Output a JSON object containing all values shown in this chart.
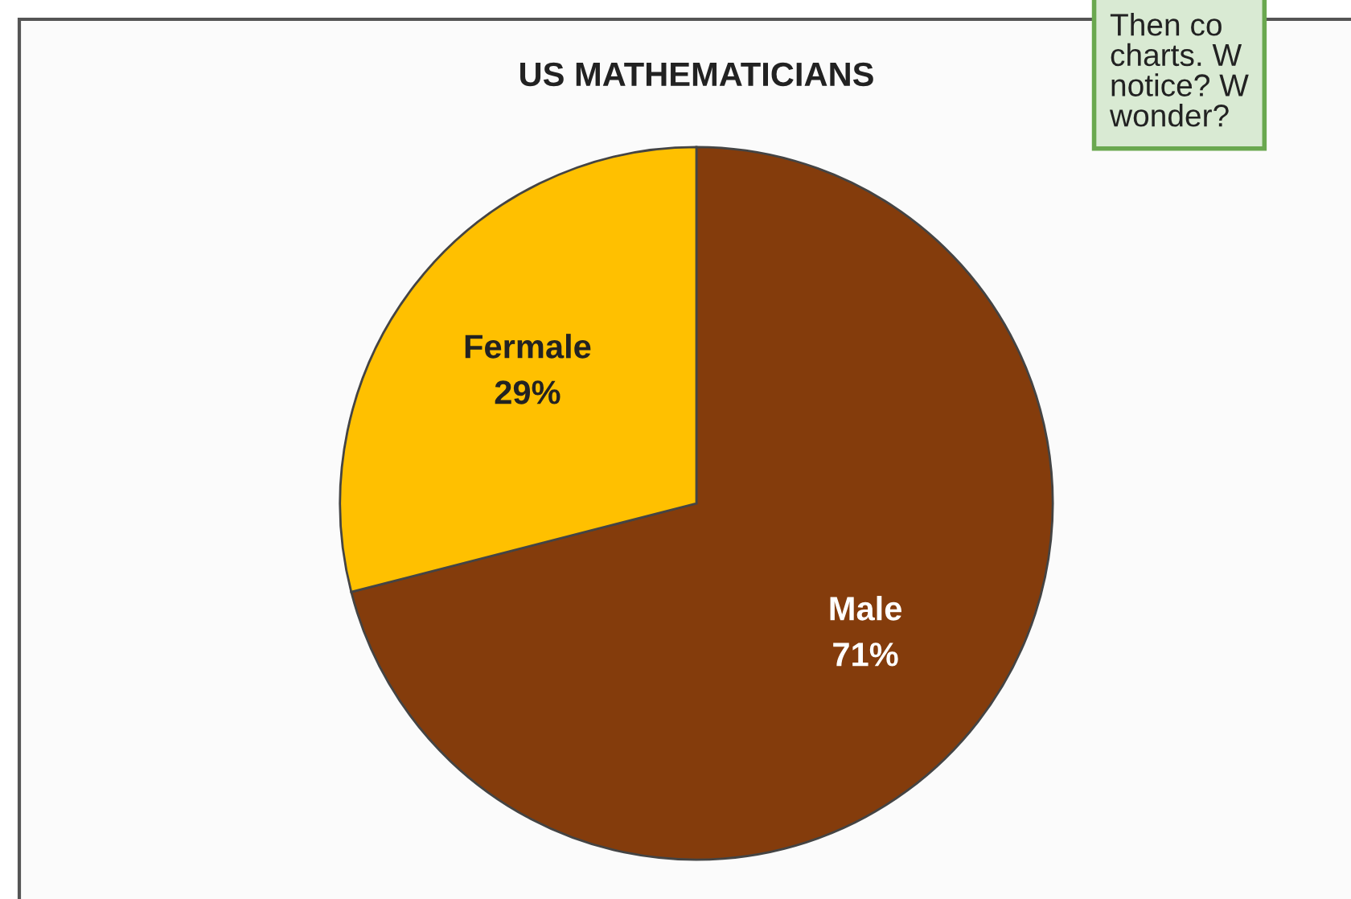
{
  "chart_data": {
    "type": "pie",
    "title": "US MATHEMATICIANS",
    "categories": [
      "Male",
      "Fermale"
    ],
    "values": [
      71,
      29
    ],
    "colors": [
      "#843c0c",
      "#ffc000"
    ],
    "value_labels": [
      "71%",
      "29%"
    ],
    "annotations": [
      "Then co\ncharts. W\nnotice? W\nwonder?"
    ]
  }
}
